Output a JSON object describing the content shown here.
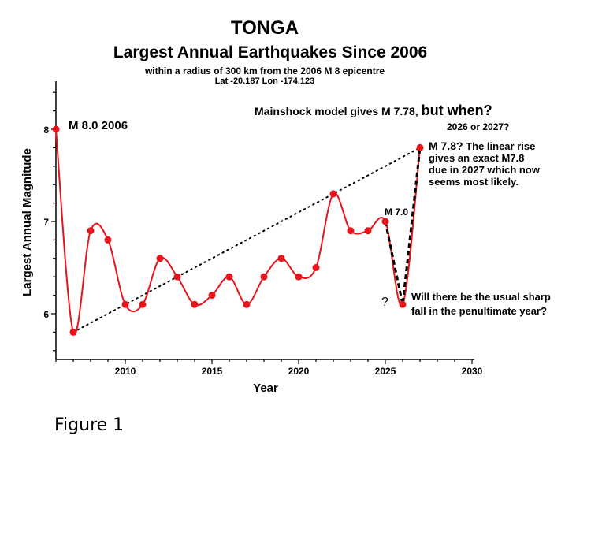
{
  "chart_data": {
    "type": "line",
    "title": "TONGA",
    "subtitle": "Largest Annual Earthquakes Since 2006",
    "note_line1": "within a radius of 300 km from the 2006 M 8 epicentre",
    "note_line2": "Lat -20.187 Lon -174.123",
    "xlabel": "Year",
    "ylabel": "Largest Annual Magnitude",
    "xlim": [
      2006,
      2030
    ],
    "ylim": [
      5.55,
      8.55
    ],
    "x_ticks": [
      "2010",
      "2015",
      "2020",
      "2025",
      "2030"
    ],
    "y_ticks": [
      "6",
      "7",
      "8"
    ],
    "x": [
      2006,
      2007,
      2008,
      2009,
      2010,
      2011,
      2012,
      2013,
      2014,
      2015,
      2016,
      2017,
      2018,
      2019,
      2020,
      2021,
      2022,
      2023,
      2024,
      2025,
      2026,
      2027
    ],
    "values": [
      8.0,
      5.8,
      6.9,
      6.8,
      6.1,
      6.1,
      6.6,
      6.4,
      6.1,
      6.2,
      6.4,
      6.1,
      6.4,
      6.6,
      6.4,
      6.5,
      7.3,
      6.9,
      6.9,
      7.0,
      6.1,
      7.8
    ],
    "trend_line": {
      "from": [
        2007,
        5.8
      ],
      "to": [
        2027,
        7.8
      ]
    },
    "dashed_path": {
      "x": [
        2025,
        2026,
        2027
      ],
      "values": [
        7.0,
        6.1,
        7.8
      ]
    },
    "grid": false,
    "colors": {
      "series": "#e8141c",
      "text": "#000000"
    }
  },
  "annotations": {
    "first_point": "M 8.0 2006",
    "model_a": "Mainshock model gives M 7.78, ",
    "model_b": "but when?",
    "years": "2026 or 2027?",
    "m78_a": "M 7.8?",
    "m78_b": " The linear rise",
    "m78_line2": "gives an exact M7.8",
    "m78_line3": "due in 2027 which now",
    "m78_line4": "seems most likely.",
    "m70": "M 7.0",
    "question": "?",
    "fall_line1": "Will there be the usual sharp",
    "fall_line2": "fall in the penultimate year?"
  },
  "figure_label": "Figure 1"
}
